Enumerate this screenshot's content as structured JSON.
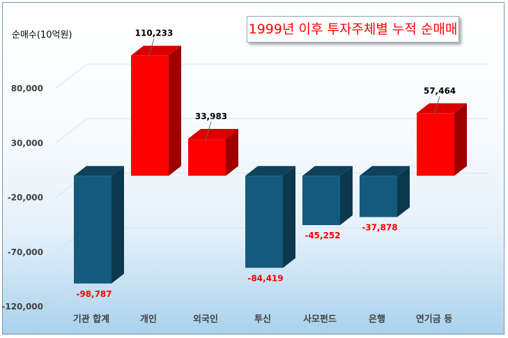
{
  "chart_data": {
    "type": "bar",
    "title": "1999년 이후 투자주체별 누적 순매매",
    "ylabel": "순매수(10억원)",
    "xlabel": "",
    "categories": [
      "기관 합계",
      "개인",
      "외국인",
      "투신",
      "사모펀드",
      "은행",
      "연기금 등"
    ],
    "values": [
      -98787,
      110233,
      33983,
      -84419,
      -45252,
      -37878,
      57464
    ],
    "value_labels": [
      "-98,787",
      "110,233",
      "33,983",
      "-84,419",
      "-45,252",
      "-37,878",
      "57,464"
    ],
    "yticks": [
      -120000,
      -70000,
      -20000,
      30000,
      80000
    ],
    "ytick_labels": [
      "-120,000",
      "-70,000",
      "-20,000",
      "30,000",
      "80,000"
    ],
    "ylim": [
      -120000,
      130000
    ],
    "grid": true,
    "legend": "none",
    "colors": {
      "positive": "#ff0000",
      "negative": "#145a7d",
      "positive_label": "#000000",
      "negative_label": "#ff0000"
    }
  }
}
